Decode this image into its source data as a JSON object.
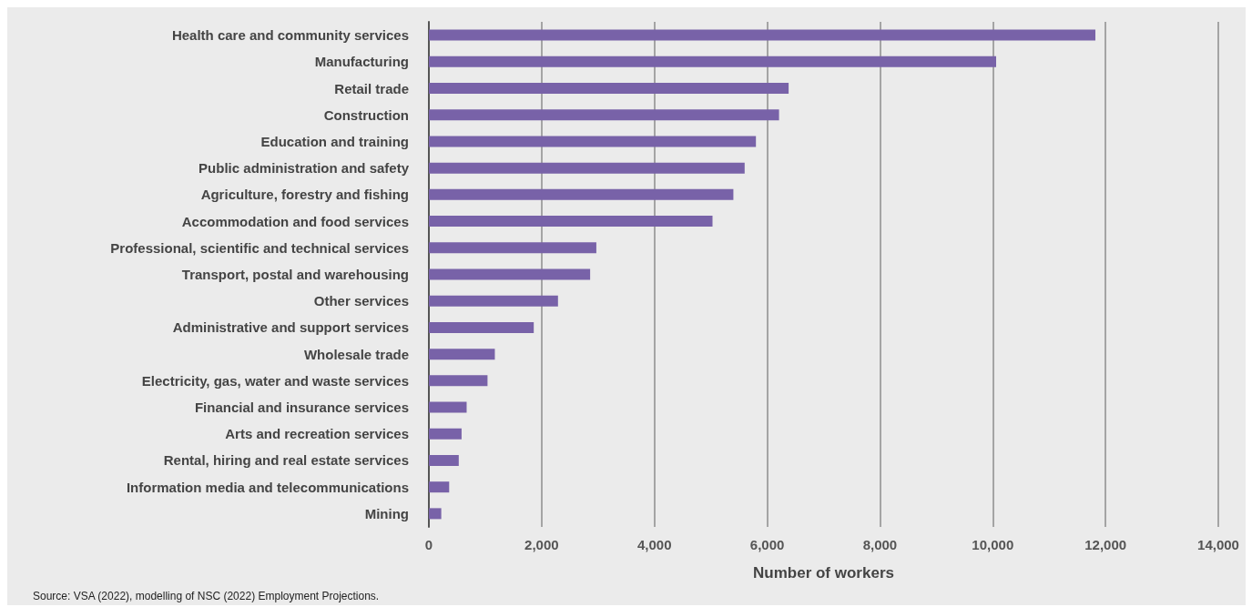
{
  "chart_data": {
    "type": "bar",
    "orientation": "horizontal",
    "xlabel": "Number of workers",
    "categories": [
      "Health care and community services",
      "Manufacturing",
      "Retail trade",
      "Construction",
      "Education and training",
      "Public administration and safety",
      "Agriculture, forestry and fishing",
      "Accommodation and food services",
      "Professional, scientific and technical services",
      "Transport, postal and warehousing",
      "Other services",
      "Administrative and support services",
      "Wholesale trade",
      "Electricity, gas, water and waste services",
      "Financial and insurance services",
      "Arts and recreation services",
      "Rental, hiring and real estate services",
      "Information media and telecommunications",
      "Mining"
    ],
    "values": [
      11820,
      10060,
      6380,
      6210,
      5800,
      5600,
      5400,
      5030,
      2970,
      2860,
      2290,
      1860,
      1170,
      1040,
      670,
      580,
      530,
      360,
      220
    ],
    "color": "#7862a8",
    "xlim": [
      0,
      14000
    ],
    "xticks": [
      {
        "value": 0,
        "label": "0"
      },
      {
        "value": 2000,
        "label": "2,000"
      },
      {
        "value": 4000,
        "label": "4,000"
      },
      {
        "value": 6000,
        "label": "6,000"
      },
      {
        "value": 8000,
        "label": "8,000"
      },
      {
        "value": 10000,
        "label": "10,000"
      },
      {
        "value": 12000,
        "label": "12,000"
      },
      {
        "value": 14000,
        "label": "14,000"
      }
    ],
    "grid": "x",
    "annotations": [
      "Source: VSA (2022), modelling of NSC (2022) Employment Projections."
    ]
  }
}
